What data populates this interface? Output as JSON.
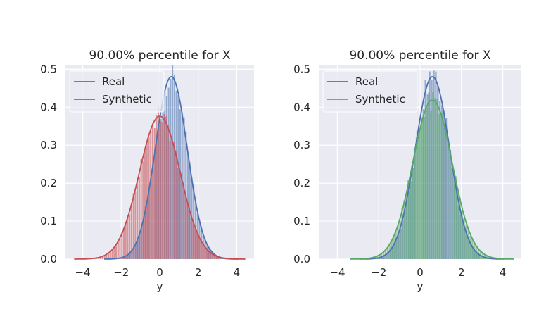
{
  "chart_data": [
    {
      "type": "histogram+kde",
      "title": "90.00% percentile for X",
      "xlabel": "y",
      "ylabel": "",
      "xlim": [
        -4.9,
        4.9
      ],
      "ylim": [
        0,
        0.51
      ],
      "xticks": [
        -4,
        -2,
        0,
        2,
        4
      ],
      "xtick_labels": [
        "−4",
        "−2",
        "0",
        "2",
        "4"
      ],
      "yticks": [
        0.0,
        0.1,
        0.2,
        0.3,
        0.4,
        0.5
      ],
      "ytick_labels": [
        "0.0",
        "0.1",
        "0.2",
        "0.3",
        "0.4",
        "0.5"
      ],
      "grid": true,
      "legend": "top-left",
      "series": [
        {
          "name": "Real",
          "color": "#4c72b0",
          "mean": 0.6,
          "std": 0.83
        },
        {
          "name": "Synthetic",
          "color": "#c44e52",
          "mean": 0.0,
          "std": 1.06
        }
      ]
    },
    {
      "type": "histogram+kde",
      "title": "90.00% percentile for X",
      "xlabel": "y",
      "ylabel": "",
      "xlim": [
        -4.9,
        4.9
      ],
      "ylim": [
        0,
        0.51
      ],
      "xticks": [
        -4,
        -2,
        0,
        2,
        4
      ],
      "xtick_labels": [
        "−4",
        "−2",
        "0",
        "2",
        "4"
      ],
      "yticks": [
        0.0,
        0.1,
        0.2,
        0.3,
        0.4,
        0.5
      ],
      "ytick_labels": [
        "0.0",
        "0.1",
        "0.2",
        "0.3",
        "0.4",
        "0.5"
      ],
      "grid": true,
      "legend": "top-left",
      "series": [
        {
          "name": "Real",
          "color": "#4c72b0",
          "mean": 0.6,
          "std": 0.83
        },
        {
          "name": "Synthetic",
          "color": "#55a868",
          "mean": 0.6,
          "std": 0.95
        }
      ]
    }
  ]
}
